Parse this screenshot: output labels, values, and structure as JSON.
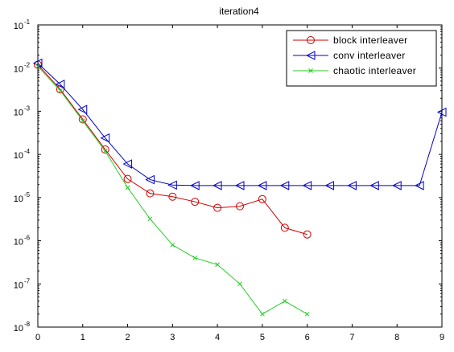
{
  "chart_data": {
    "type": "line",
    "title": "iteration4",
    "xlabel": "",
    "ylabel": "",
    "xlim": [
      0,
      9
    ],
    "ylim": [
      1e-08,
      0.1
    ],
    "yscale": "log",
    "grid": false,
    "legend_position": "top-right",
    "x_ticks": [
      "0",
      "1",
      "2",
      "3",
      "4",
      "5",
      "6",
      "7",
      "8",
      "9"
    ],
    "y_ticks": [
      {
        "base": "10",
        "exp": "-8",
        "value": 1e-08
      },
      {
        "base": "10",
        "exp": "-7",
        "value": 1e-07
      },
      {
        "base": "10",
        "exp": "-6",
        "value": 1e-06
      },
      {
        "base": "10",
        "exp": "-5",
        "value": 1e-05
      },
      {
        "base": "10",
        "exp": "-4",
        "value": 0.0001
      },
      {
        "base": "10",
        "exp": "-3",
        "value": 0.001
      },
      {
        "base": "10",
        "exp": "-2",
        "value": 0.01
      },
      {
        "base": "10",
        "exp": "-1",
        "value": 0.1
      }
    ],
    "series": [
      {
        "name": "block interleaver",
        "color": "#d00000",
        "marker": "circle",
        "x": [
          0,
          0.5,
          1,
          1.5,
          2,
          2.5,
          3,
          3.5,
          4,
          4.5,
          5,
          5.5,
          6
        ],
        "y": [
          0.012,
          0.0032,
          0.00065,
          0.00013,
          2.7e-05,
          1.25e-05,
          1.05e-05,
          8e-06,
          5.8e-06,
          6.3e-06,
          9.2e-06,
          2e-06,
          1.4e-06
        ]
      },
      {
        "name": "conv interleaver",
        "color": "#0000cc",
        "marker": "triangle-left",
        "x": [
          0,
          0.5,
          1,
          1.5,
          2,
          2.5,
          3,
          3.5,
          4,
          4.5,
          5,
          5.5,
          6,
          6.5,
          7,
          7.5,
          8,
          8.5,
          9
        ],
        "y": [
          0.013,
          0.0042,
          0.0011,
          0.00024,
          6e-05,
          2.6e-05,
          1.95e-05,
          1.9e-05,
          1.9e-05,
          1.9e-05,
          1.9e-05,
          1.9e-05,
          1.9e-05,
          1.9e-05,
          1.9e-05,
          1.9e-05,
          1.9e-05,
          1.9e-05,
          0.00095
        ]
      },
      {
        "name": "chaotic interleaver",
        "color": "#22cc22",
        "marker": "x",
        "x": [
          0,
          0.5,
          1,
          1.5,
          2,
          2.5,
          3,
          3.5,
          4,
          4.5,
          5,
          5.5,
          6
        ],
        "y": [
          0.011,
          0.003,
          0.0006,
          0.00012,
          1.7e-05,
          3.2e-06,
          8e-07,
          4e-07,
          2.8e-07,
          1e-07,
          2e-08,
          4e-08,
          2e-08
        ]
      }
    ]
  }
}
